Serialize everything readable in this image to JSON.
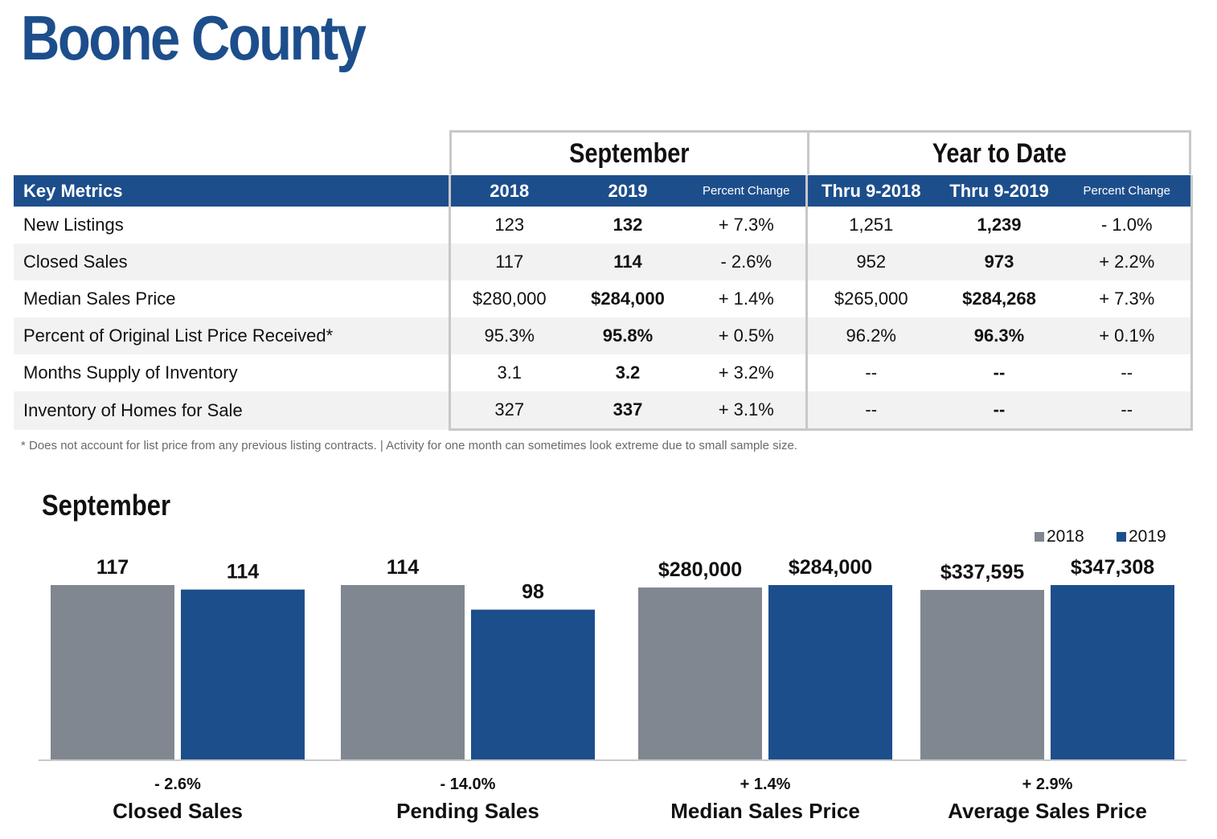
{
  "page": {
    "title": "Boone County"
  },
  "table": {
    "group_headers": {
      "month": "September",
      "ytd": "Year to Date"
    },
    "columns": [
      "Key Metrics",
      "2018",
      "2019",
      "Percent Change",
      "Thru 9-2018",
      "Thru 9-2019",
      "Percent Change"
    ],
    "rows": [
      {
        "metric": "New Listings",
        "m2018": "123",
        "m2019": "132",
        "mchg": "+ 7.3%",
        "y2018": "1,251",
        "y2019": "1,239",
        "ychg": "- 1.0%"
      },
      {
        "metric": "Closed Sales",
        "m2018": "117",
        "m2019": "114",
        "mchg": "- 2.6%",
        "y2018": "952",
        "y2019": "973",
        "ychg": "+ 2.2%"
      },
      {
        "metric": "Median Sales Price",
        "m2018": "$280,000",
        "m2019": "$284,000",
        "mchg": "+ 1.4%",
        "y2018": "$265,000",
        "y2019": "$284,268",
        "ychg": "+ 7.3%"
      },
      {
        "metric": "Percent of Original List Price Received*",
        "m2018": "95.3%",
        "m2019": "95.8%",
        "mchg": "+ 0.5%",
        "y2018": "96.2%",
        "y2019": "96.3%",
        "ychg": "+ 0.1%"
      },
      {
        "metric": "Months Supply of Inventory",
        "m2018": "3.1",
        "m2019": "3.2",
        "mchg": "+ 3.2%",
        "y2018": "--",
        "y2019": "--",
        "ychg": "--"
      },
      {
        "metric": "Inventory of Homes for Sale",
        "m2018": "327",
        "m2019": "337",
        "mchg": "+ 3.1%",
        "y2018": "--",
        "y2019": "--",
        "ychg": "--"
      }
    ],
    "footnote": "* Does not account for list price from any previous listing contracts.  |  Activity for one month can sometimes look extreme due to small sample size."
  },
  "chart_data": {
    "type": "bar",
    "title": "September",
    "legend": [
      "2018",
      "2019"
    ],
    "legend_position": "top-right",
    "colors": {
      "2018": "#808790",
      "2019": "#1d4e8c"
    },
    "panels": [
      {
        "name": "Closed Sales",
        "change": "- 2.6%",
        "values": [
          117,
          114
        ],
        "labels": [
          "117",
          "114"
        ]
      },
      {
        "name": "Pending Sales",
        "change": "- 14.0%",
        "values": [
          114,
          98
        ],
        "labels": [
          "114",
          "98"
        ]
      },
      {
        "name": "Median Sales Price",
        "change": "+ 1.4%",
        "values": [
          280000,
          284000
        ],
        "labels": [
          "$280,000",
          "$284,000"
        ]
      },
      {
        "name": "Average Sales Price",
        "change": "+ 2.9%",
        "values": [
          337595,
          347308
        ],
        "labels": [
          "$337,595",
          "$347,308"
        ]
      }
    ]
  }
}
